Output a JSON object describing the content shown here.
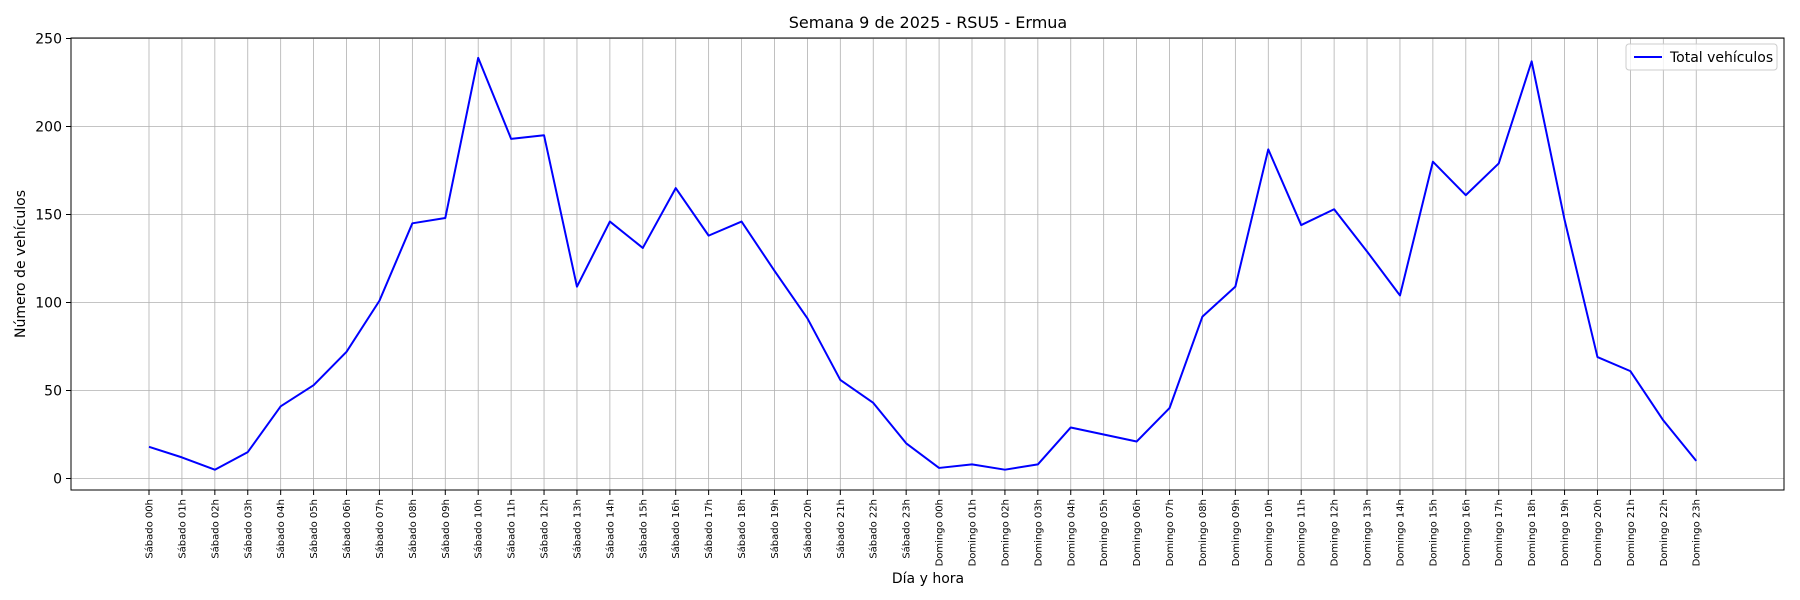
{
  "chart_data": {
    "type": "line",
    "title": "Semana 9 de 2025 - RSU5 - Ermua",
    "xlabel": "Día y hora",
    "ylabel": "Número de vehículos",
    "ylim": [
      -7,
      251
    ],
    "y_ticks": [
      0,
      50,
      100,
      150,
      200,
      250
    ],
    "grid": true,
    "legend_position": "top-right",
    "categories": [
      "Sábado 00h",
      "Sábado 01h",
      "Sábado 02h",
      "Sábado 03h",
      "Sábado 04h",
      "Sábado 05h",
      "Sábado 06h",
      "Sábado 07h",
      "Sábado 08h",
      "Sábado 09h",
      "Sábado 10h",
      "Sábado 11h",
      "Sábado 12h",
      "Sábado 13h",
      "Sábado 14h",
      "Sábado 15h",
      "Sábado 16h",
      "Sábado 17h",
      "Sábado 18h",
      "Sábado 19h",
      "Sábado 20h",
      "Sábado 21h",
      "Sábado 22h",
      "Sábado 23h",
      "Domingo 00h",
      "Domingo 01h",
      "Domingo 02h",
      "Domingo 03h",
      "Domingo 04h",
      "Domingo 05h",
      "Domingo 06h",
      "Domingo 07h",
      "Domingo 08h",
      "Domingo 09h",
      "Domingo 10h",
      "Domingo 11h",
      "Domingo 12h",
      "Domingo 13h",
      "Domingo 14h",
      "Domingo 15h",
      "Domingo 16h",
      "Domingo 17h",
      "Domingo 18h",
      "Domingo 19h",
      "Domingo 20h",
      "Domingo 21h",
      "Domingo 22h",
      "Domingo 23h"
    ],
    "series": [
      {
        "name": "Total vehículos",
        "color": "#0000ff",
        "values": [
          18,
          12,
          5,
          15,
          41,
          53,
          72,
          101,
          145,
          148,
          239,
          193,
          195,
          109,
          146,
          131,
          165,
          138,
          146,
          118,
          91,
          56,
          43,
          20,
          6,
          8,
          5,
          8,
          29,
          25,
          21,
          40,
          92,
          109,
          187,
          144,
          153,
          129,
          104,
          180,
          161,
          179,
          237,
          147,
          69,
          61,
          33,
          10
        ]
      }
    ]
  }
}
